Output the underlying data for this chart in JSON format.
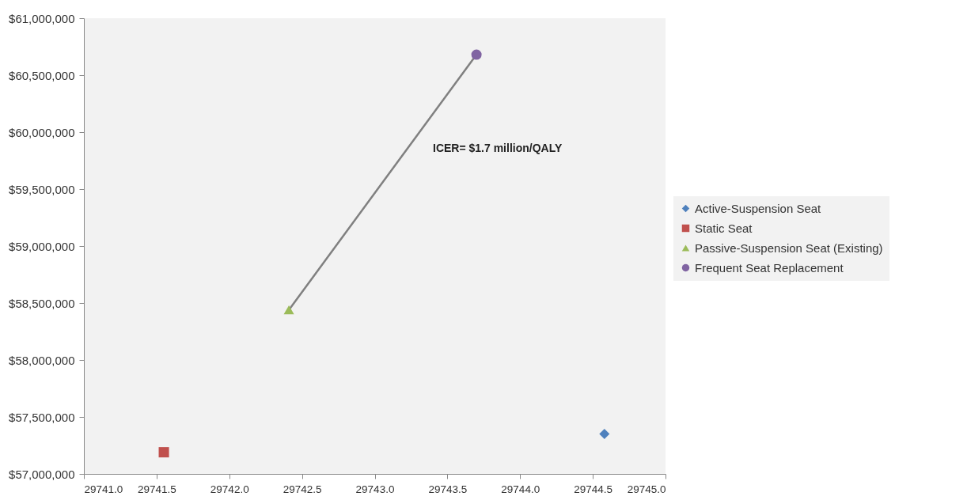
{
  "chart_data": {
    "type": "scatter",
    "series": [
      {
        "name": "Active-Suspension Seat",
        "color": "#4f81bd",
        "marker": "diamond",
        "x": [
          29744.58
        ],
        "values": [
          57350000
        ]
      },
      {
        "name": "Static Seat",
        "color": "#c0504d",
        "marker": "square",
        "x": [
          29741.55
        ],
        "values": [
          57190000
        ]
      },
      {
        "name": "Passive-Suspension Seat (Existing)",
        "color": "#9bbb59",
        "marker": "triangle",
        "x": [
          29742.41
        ],
        "values": [
          58440000
        ]
      },
      {
        "name": "Frequent Seat Replacement",
        "color": "#8064a2",
        "marker": "circle",
        "x": [
          29743.7
        ],
        "values": [
          60680000
        ]
      },
      {
        "type": "line",
        "color": "#808080",
        "x": [
          29742.41,
          29743.7
        ],
        "values": [
          58440000,
          60680000
        ]
      }
    ],
    "xlim": [
      29741,
      29745
    ],
    "xticks": [
      {
        "value": 29741,
        "label": "29741.0"
      },
      {
        "value": 29741.5,
        "label": "29741.5"
      },
      {
        "value": 29742,
        "label": "29742.0"
      },
      {
        "value": 29742.5,
        "label": "29742.5"
      },
      {
        "value": 29743,
        "label": "29743.0"
      },
      {
        "value": 29743.5,
        "label": "29743.5"
      },
      {
        "value": 29744,
        "label": "29744.0"
      },
      {
        "value": 29744.5,
        "label": "29744.5"
      },
      {
        "value": 29745,
        "label": "29745.0"
      }
    ],
    "ylim": [
      57000000,
      61000000
    ],
    "yticks": [
      {
        "value": 57000000,
        "label": "$57,000,000"
      },
      {
        "value": 57500000,
        "label": "$57,500,000"
      },
      {
        "value": 58000000,
        "label": "$58,000,000"
      },
      {
        "value": 58500000,
        "label": "$58,500,000"
      },
      {
        "value": 59000000,
        "label": "$59,000,000"
      },
      {
        "value": 59500000,
        "label": "$59,500,000"
      },
      {
        "value": 60000000,
        "label": "$60,000,000"
      },
      {
        "value": 60500000,
        "label": "$60,500,000"
      },
      {
        "value": 61000000,
        "label": "$61,000,000"
      }
    ],
    "annotations": [
      "ICER= $1.7 million/QALY"
    ],
    "legend": "right",
    "grid": false
  }
}
